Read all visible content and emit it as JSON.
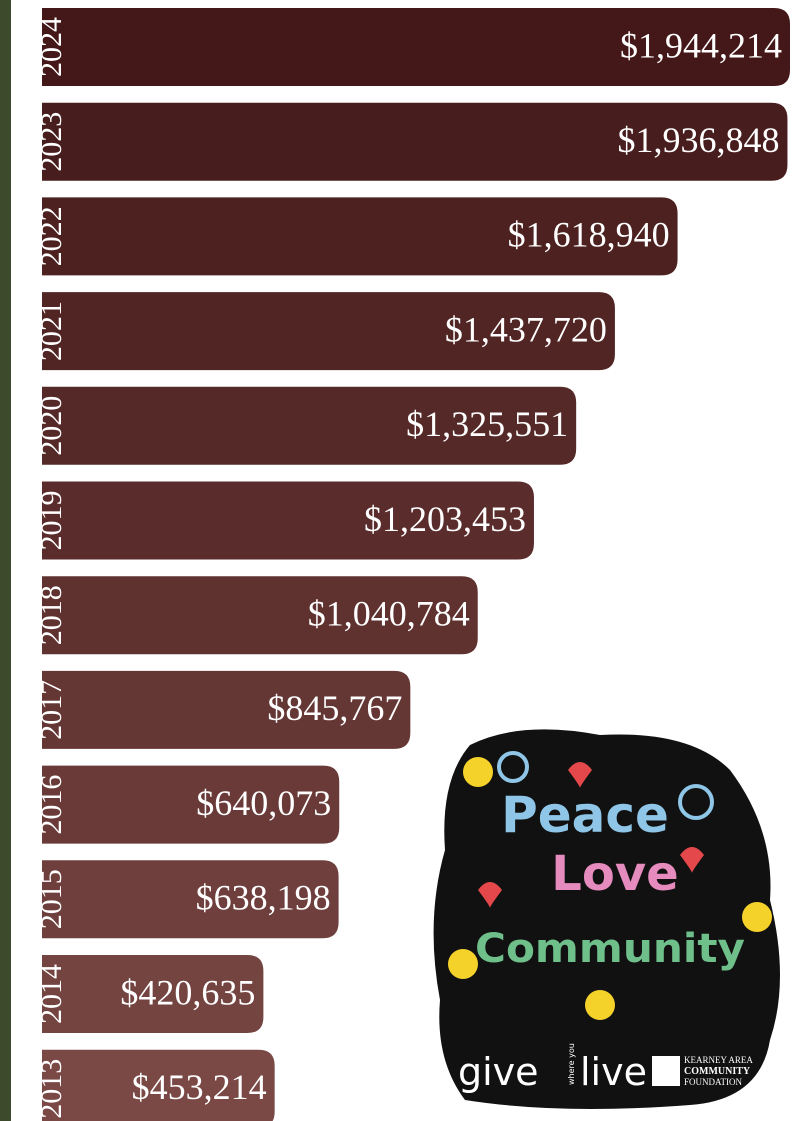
{
  "chart_data": {
    "type": "bar",
    "categories": [
      "2024",
      "2023",
      "2022",
      "2021",
      "2020",
      "2019",
      "2018",
      "2017",
      "2016",
      "2015",
      "2014",
      "2013"
    ],
    "values": [
      1944214,
      1936848,
      1618940,
      1437720,
      1325551,
      1203453,
      1040784,
      845767,
      640073,
      638198,
      420635,
      453214
    ],
    "value_labels": [
      "$1,944,214",
      "$1,936,848",
      "$1,618,940",
      "$1,437,720",
      "$1,325,551",
      "$1,203,453",
      "$1,040,784",
      "$845,767",
      "$640,073",
      "$638,198",
      "$420,635",
      "$453,214"
    ],
    "colors": [
      "#441819",
      "#481d1e",
      "#4c2120",
      "#512524",
      "#552928",
      "#5a2d2c",
      "#5f3230",
      "#643634",
      "#693a38",
      "#6e3f3c",
      "#744441",
      "#7a4845"
    ]
  },
  "sticker": {
    "line1": "Peace",
    "line2": "Love",
    "line3": "Community",
    "brand_give": "give",
    "brand_where": "where you",
    "brand_live": "live",
    "foundation": [
      "KEARNEY AREA",
      "COMMUNITY",
      "FOUNDATION"
    ]
  }
}
